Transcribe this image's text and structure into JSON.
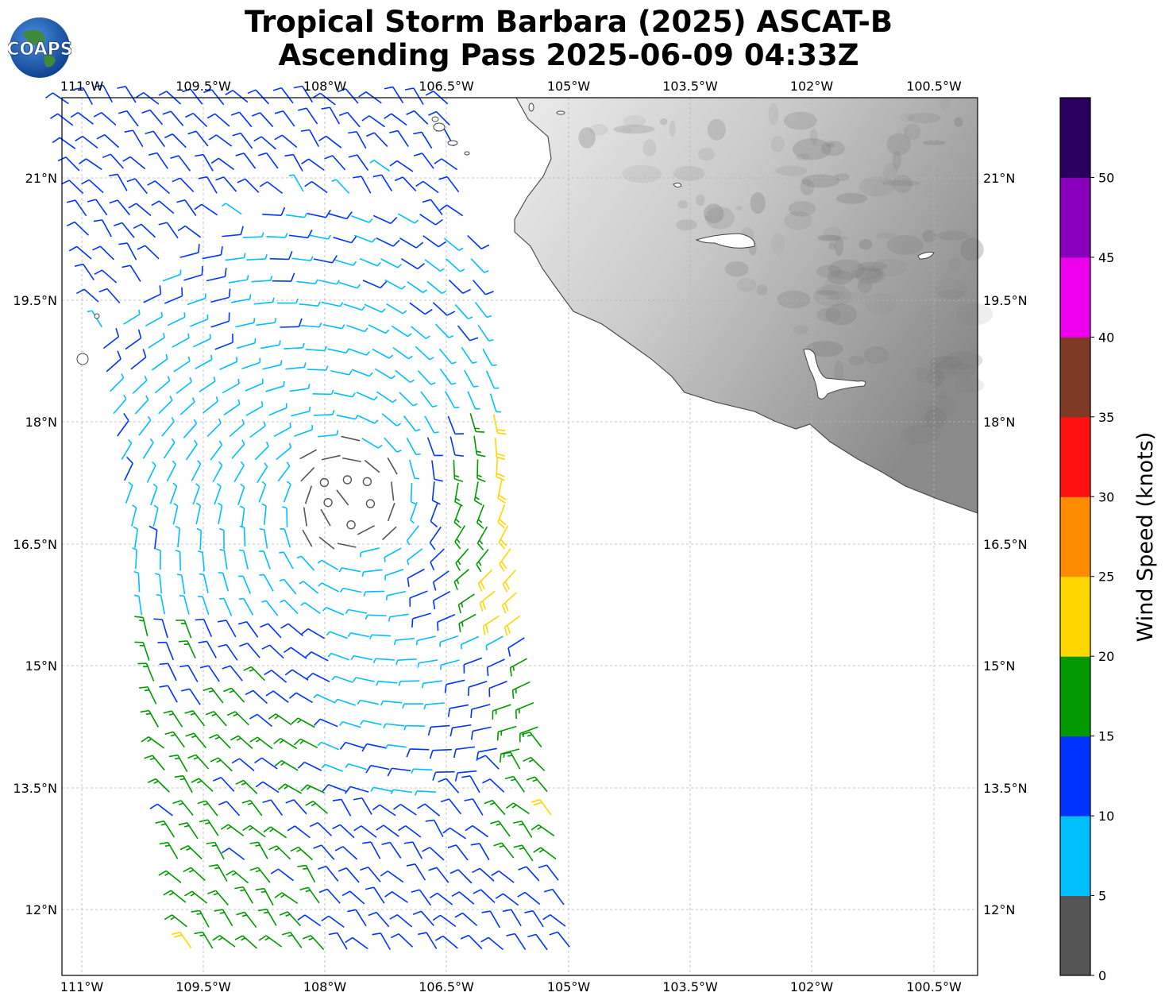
{
  "title_line1": "Tropical Storm Barbara (2025) ASCAT-B",
  "title_line2": "Ascending Pass 2025-06-09 04:33Z",
  "logo_text": "COAPS",
  "lon_labels": [
    "111°W",
    "109.5°W",
    "108°W",
    "106.5°W",
    "105°W",
    "103.5°W",
    "102°W",
    "100.5°W"
  ],
  "lat_labels": [
    "21°N",
    "19.5°N",
    "18°N",
    "16.5°N",
    "15°N",
    "13.5°N",
    "12°N"
  ],
  "colorbar": {
    "title": "Wind Speed (knots)",
    "tick_labels": [
      "0",
      "5",
      "10",
      "15",
      "20",
      "25",
      "30",
      "35",
      "40",
      "45",
      "50"
    ],
    "colors": [
      "#555555",
      "#00bfff",
      "#0033ff",
      "#009900",
      "#ffd700",
      "#ff8c00",
      "#ff1111",
      "#7f3a26",
      "#ee00ee",
      "#8800bb",
      "#2a005f"
    ]
  },
  "map": {
    "lon_range": [
      -111.25,
      -99.95
    ],
    "lat_range": [
      11.2,
      22.0
    ],
    "gridline_color": "#bbbbbb",
    "land_color": "gray-shaded terrain",
    "storm_center_calm_circles": true
  }
}
